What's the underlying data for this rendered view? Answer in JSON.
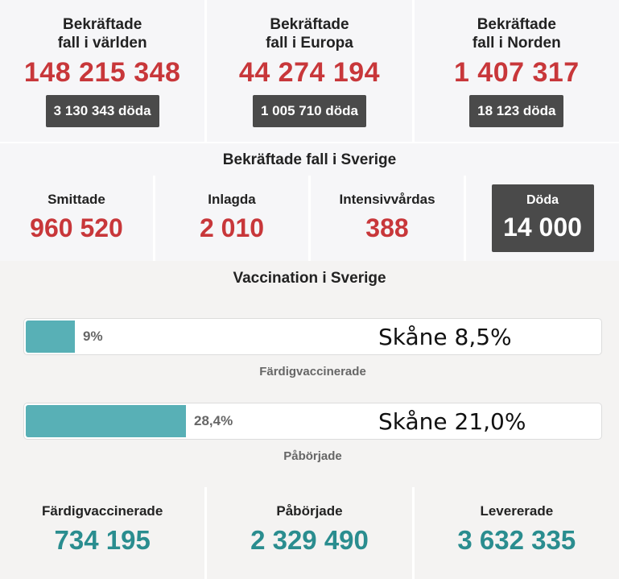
{
  "world": [
    {
      "title_line1": "Bekräftade",
      "title_line2": "fall i världen",
      "cases": "148 215 348",
      "deaths": "3 130 343 döda"
    },
    {
      "title_line1": "Bekräftade",
      "title_line2": "fall i Europa",
      "cases": "44 274 194",
      "deaths": "1 005 710 döda"
    },
    {
      "title_line1": "Bekräftade",
      "title_line2": "fall i Norden",
      "cases": "1 407 317",
      "deaths": "18 123 döda"
    }
  ],
  "sweden": {
    "heading": "Bekräftade fall i Sverige",
    "stats": [
      {
        "label": "Smittade",
        "value": "960 520"
      },
      {
        "label": "Inlagda",
        "value": "2 010"
      },
      {
        "label": "Intensivvårdas",
        "value": "388"
      }
    ],
    "deaths": {
      "label": "Döda",
      "value": "14 000"
    }
  },
  "vaccination": {
    "heading": "Vaccination i Sverige",
    "bars": [
      {
        "percent_text": "9%",
        "fraction": 0.09,
        "note": "Skåne 8,5%",
        "caption": "Färdigvaccinerade"
      },
      {
        "percent_text": "28,4%",
        "fraction": 0.284,
        "note": "Skåne 21,0%",
        "caption": "Påbörjade"
      }
    ],
    "bar_color": "#58b0b6"
  },
  "totals": [
    {
      "label": "Färdigvaccinerade",
      "value": "734 195"
    },
    {
      "label": "Påbörjade",
      "value": "2 329 490"
    },
    {
      "label": "Levererade",
      "value": "3 632 335"
    }
  ],
  "colors": {
    "cases_red": "#c8373a",
    "vacc_teal": "#2a8d8f",
    "dark_badge": "#4a4a4a"
  }
}
